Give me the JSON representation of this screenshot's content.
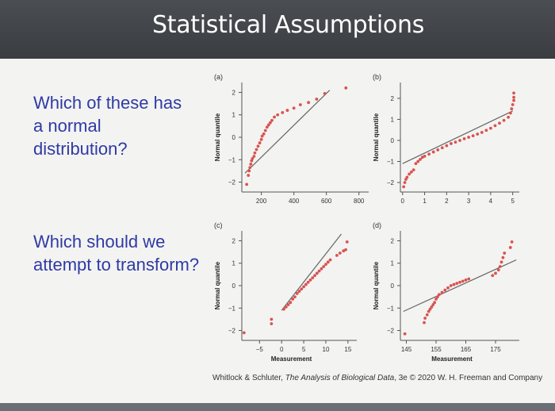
{
  "slide": {
    "title": "Statistical Assumptions",
    "question1": "Which of these has a normal distribution?",
    "question2": "Which should we attempt to transform?",
    "caption": {
      "authors": "Whitlock & Schluter, ",
      "book": "The Analysis of Biological Data",
      "rest": ", 3e © 2020 W. H. Freeman and Company"
    }
  },
  "colors": {
    "points": "#d9534f",
    "line": "#666666",
    "title_text": "#ffffff",
    "question_text": "#2f3aa6"
  },
  "chart_data": [
    {
      "type": "scatter",
      "panel": "(a)",
      "ylabel": "Normal quantile",
      "xlabel": "",
      "xticks": [
        "200",
        "400",
        "600",
        "800"
      ],
      "yticks": [
        "2",
        "1",
        "0",
        "−1",
        "−2"
      ],
      "xlim": [
        80,
        860
      ],
      "ylim": [
        -2.3,
        2.3
      ],
      "reference_line": [
        [
          100,
          -1.6
        ],
        [
          620,
          2.1
        ]
      ],
      "points": [
        [
          110,
          -2.1
        ],
        [
          120,
          -1.7
        ],
        [
          125,
          -1.5
        ],
        [
          130,
          -1.35
        ],
        [
          135,
          -1.2
        ],
        [
          140,
          -1.05
        ],
        [
          145,
          -0.95
        ],
        [
          155,
          -0.85
        ],
        [
          160,
          -0.7
        ],
        [
          170,
          -0.55
        ],
        [
          180,
          -0.4
        ],
        [
          190,
          -0.25
        ],
        [
          200,
          -0.1
        ],
        [
          205,
          0.05
        ],
        [
          215,
          0.15
        ],
        [
          225,
          0.3
        ],
        [
          235,
          0.45
        ],
        [
          245,
          0.55
        ],
        [
          255,
          0.65
        ],
        [
          265,
          0.75
        ],
        [
          280,
          0.9
        ],
        [
          300,
          1.0
        ],
        [
          330,
          1.1
        ],
        [
          360,
          1.2
        ],
        [
          400,
          1.3
        ],
        [
          440,
          1.45
        ],
        [
          490,
          1.55
        ],
        [
          540,
          1.7
        ],
        [
          590,
          1.95
        ],
        [
          720,
          2.2
        ]
      ]
    },
    {
      "type": "scatter",
      "panel": "(b)",
      "ylabel": "Normal quantile",
      "xlabel": "",
      "xticks": [
        "0",
        "1",
        "2",
        "3",
        "4",
        "5"
      ],
      "yticks": [
        "2",
        "1",
        "0",
        "−1",
        "−2"
      ],
      "xlim": [
        -0.1,
        5.3
      ],
      "ylim": [
        -2.3,
        2.6
      ],
      "reference_line": [
        [
          0.0,
          -1.1
        ],
        [
          5.0,
          1.4
        ]
      ],
      "points": [
        [
          0.05,
          -2.2
        ],
        [
          0.1,
          -2.0
        ],
        [
          0.15,
          -1.85
        ],
        [
          0.2,
          -1.75
        ],
        [
          0.3,
          -1.6
        ],
        [
          0.4,
          -1.5
        ],
        [
          0.5,
          -1.4
        ],
        [
          0.6,
          -1.1
        ],
        [
          0.7,
          -1.0
        ],
        [
          0.8,
          -0.9
        ],
        [
          0.9,
          -0.8
        ],
        [
          1.0,
          -0.75
        ],
        [
          1.2,
          -0.65
        ],
        [
          1.4,
          -0.55
        ],
        [
          1.6,
          -0.45
        ],
        [
          1.8,
          -0.35
        ],
        [
          2.0,
          -0.25
        ],
        [
          2.2,
          -0.15
        ],
        [
          2.4,
          -0.08
        ],
        [
          2.6,
          0.0
        ],
        [
          2.8,
          0.08
        ],
        [
          3.0,
          0.15
        ],
        [
          3.2,
          0.22
        ],
        [
          3.4,
          0.3
        ],
        [
          3.6,
          0.38
        ],
        [
          3.8,
          0.48
        ],
        [
          4.0,
          0.58
        ],
        [
          4.2,
          0.7
        ],
        [
          4.4,
          0.82
        ],
        [
          4.6,
          0.95
        ],
        [
          4.8,
          1.1
        ],
        [
          4.9,
          1.3
        ],
        [
          4.95,
          1.5
        ],
        [
          5.0,
          1.7
        ],
        [
          5.05,
          1.9
        ],
        [
          5.05,
          2.05
        ],
        [
          5.05,
          2.25
        ]
      ]
    },
    {
      "type": "scatter",
      "panel": "(c)",
      "ylabel": "Normal quantile",
      "xlabel": "Measurement",
      "xticks": [
        "−5",
        "0",
        "5",
        "10",
        "15"
      ],
      "yticks": [
        "2",
        "1",
        "0",
        "−1",
        "−2"
      ],
      "xlim": [
        -9,
        17
      ],
      "ylim": [
        -2.3,
        2.3
      ],
      "reference_line": [
        [
          0.0,
          -1.1
        ],
        [
          13.5,
          2.3
        ]
      ],
      "points": [
        [
          -8.5,
          -2.1
        ],
        [
          -2.3,
          -1.7
        ],
        [
          -2.3,
          -1.5
        ],
        [
          0.5,
          -1.05
        ],
        [
          1.0,
          -0.95
        ],
        [
          1.5,
          -0.85
        ],
        [
          2.0,
          -0.75
        ],
        [
          2.5,
          -0.6
        ],
        [
          3.0,
          -0.5
        ],
        [
          3.5,
          -0.35
        ],
        [
          4.0,
          -0.25
        ],
        [
          4.5,
          -0.15
        ],
        [
          5.0,
          -0.05
        ],
        [
          5.5,
          0.05
        ],
        [
          6.0,
          0.15
        ],
        [
          6.5,
          0.25
        ],
        [
          7.0,
          0.35
        ],
        [
          7.5,
          0.45
        ],
        [
          8.0,
          0.55
        ],
        [
          8.5,
          0.65
        ],
        [
          9.0,
          0.75
        ],
        [
          9.5,
          0.85
        ],
        [
          10.0,
          0.95
        ],
        [
          10.5,
          1.05
        ],
        [
          11.0,
          1.15
        ],
        [
          12.5,
          1.35
        ],
        [
          13.2,
          1.45
        ],
        [
          14.0,
          1.55
        ],
        [
          14.5,
          1.6
        ],
        [
          14.8,
          1.95
        ]
      ]
    },
    {
      "type": "scatter",
      "panel": "(d)",
      "ylabel": "Normal quantile",
      "xlabel": "Measurement",
      "xticks": [
        "145",
        "155",
        "165",
        "175"
      ],
      "yticks": [
        "2",
        "1",
        "0",
        "−1",
        "−2"
      ],
      "xlim": [
        143,
        183
      ],
      "ylim": [
        -2.3,
        2.3
      ],
      "reference_line": [
        [
          144,
          -1.15
        ],
        [
          182,
          1.15
        ]
      ],
      "points": [
        [
          144.5,
          -2.15
        ],
        [
          151,
          -1.65
        ],
        [
          151.3,
          -1.45
        ],
        [
          152,
          -1.3
        ],
        [
          152.5,
          -1.15
        ],
        [
          153,
          -1.05
        ],
        [
          153.5,
          -0.95
        ],
        [
          154,
          -0.85
        ],
        [
          154.5,
          -0.75
        ],
        [
          155,
          -0.6
        ],
        [
          155.5,
          -0.5
        ],
        [
          156,
          -0.4
        ],
        [
          157,
          -0.3
        ],
        [
          158,
          -0.2
        ],
        [
          159,
          -0.1
        ],
        [
          160,
          0.0
        ],
        [
          161,
          0.05
        ],
        [
          162,
          0.1
        ],
        [
          163,
          0.15
        ],
        [
          164,
          0.2
        ],
        [
          165,
          0.25
        ],
        [
          166,
          0.3
        ],
        [
          174,
          0.45
        ],
        [
          175,
          0.55
        ],
        [
          176,
          0.7
        ],
        [
          176.5,
          0.85
        ],
        [
          177,
          1.05
        ],
        [
          177.5,
          1.25
        ],
        [
          178,
          1.45
        ],
        [
          180,
          1.7
        ],
        [
          180.5,
          1.95
        ]
      ]
    }
  ]
}
